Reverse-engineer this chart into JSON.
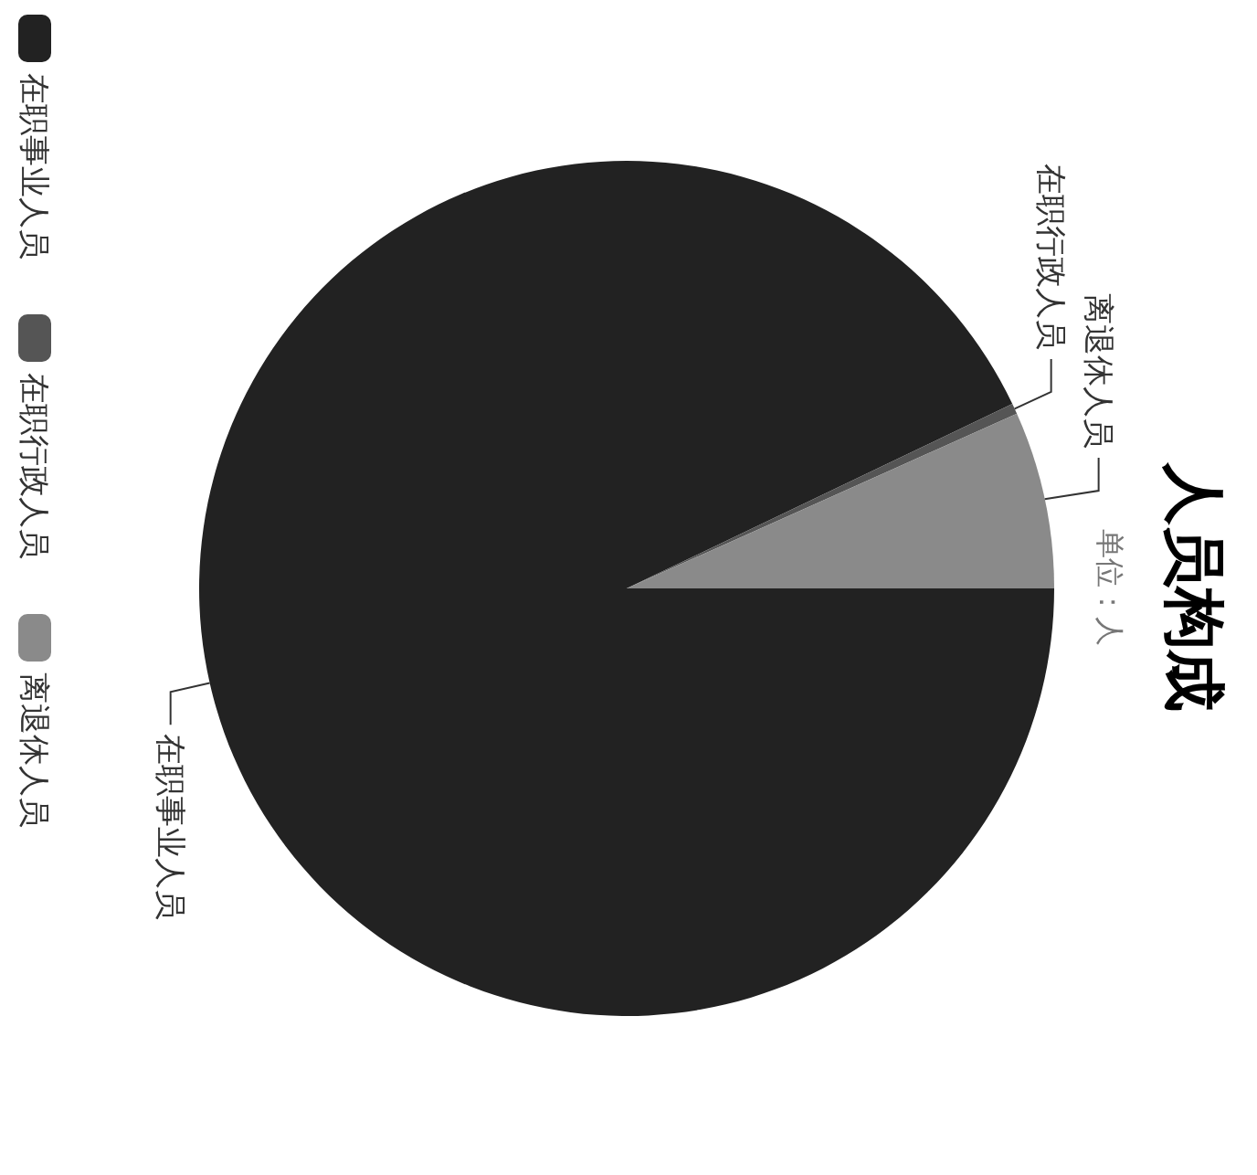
{
  "chart_data": {
    "type": "pie",
    "title": "人员构成",
    "subtitle": "单位：人",
    "categories": [
      "在职事业人员",
      "在职行政人员",
      "离退休人员"
    ],
    "values": [
      92.9,
      0.4,
      6.7
    ],
    "colors": [
      "#222222",
      "#555555",
      "#8a8a8a"
    ],
    "legend": "left"
  }
}
